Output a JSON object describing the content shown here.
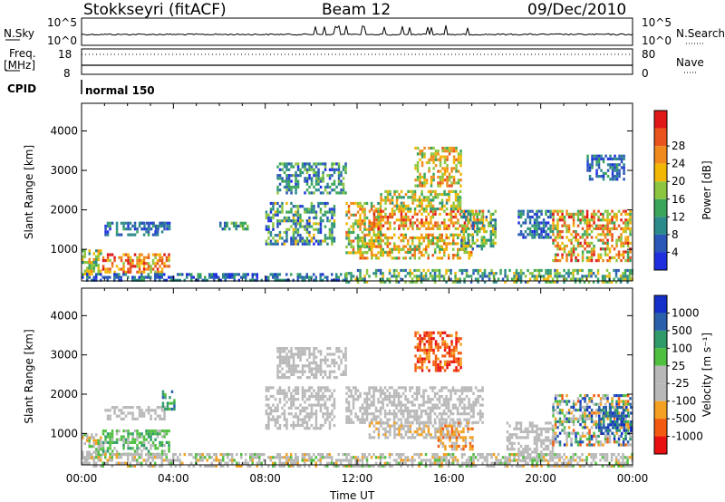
{
  "header": {
    "station": "Stokkseyri (fitACF)",
    "beam": "Beam 12",
    "date": "09/Dec/2010"
  },
  "top_panel": {
    "nsky_label": "N.Sky",
    "nsky_ticks": [
      "10^5",
      "10^0"
    ],
    "nsearch_label": "N.Search",
    "nsearch_ticks": [
      "10^5",
      "10^0"
    ],
    "freq_label": "Freq.",
    "freq_unit": "[MHz]",
    "freq_ticks": [
      "18",
      "8"
    ],
    "nave_label": "Nave",
    "nave_ticks": [
      "80",
      "0"
    ],
    "cpid_label": "CPID",
    "cpid_value": "normal 150"
  },
  "colors": {
    "power": [
      "#1f2fe0",
      "#2a57b8",
      "#2c8a8a",
      "#3aa65a",
      "#8cc63f",
      "#f2b705",
      "#f08a1c",
      "#e8541c",
      "#e01818"
    ],
    "velocity": [
      "#e81010",
      "#f25a10",
      "#f4a020",
      "#b8b8b8",
      "#b8b8b8",
      "#4fbf3f",
      "#2f9a6a",
      "#2a5faa",
      "#1530c8"
    ]
  },
  "chart_data": [
    {
      "type": "heatmap",
      "name": "power",
      "ylabel": "Slant Range [km]",
      "xlabel": "",
      "ylim": [
        200,
        4700
      ],
      "xlim": [
        0,
        24
      ],
      "yticks": [
        "1000",
        "2000",
        "3000",
        "4000"
      ],
      "ytick_values": [
        1000,
        2000,
        3000,
        4000
      ],
      "colorbar": {
        "label": "Power [dB]",
        "ticks": [
          "4",
          "8",
          "12",
          "16",
          "20",
          "24",
          "28"
        ],
        "range": [
          0,
          32
        ]
      },
      "regions": [
        {
          "t": [
            0.0,
            0.8
          ],
          "r": [
            400,
            1000
          ],
          "level": [
            2,
            6
          ]
        },
        {
          "t": [
            0.9,
            3.8
          ],
          "r": [
            400,
            900
          ],
          "level": [
            4,
            8
          ]
        },
        {
          "t": [
            1.0,
            3.6
          ],
          "r": [
            1400,
            1700
          ],
          "level": [
            0,
            3
          ]
        },
        {
          "t": [
            2.5,
            3.8
          ],
          "r": [
            1500,
            1700
          ],
          "level": [
            0,
            2
          ]
        },
        {
          "t": [
            6.0,
            7.2
          ],
          "r": [
            1500,
            1700
          ],
          "level": [
            1,
            4
          ]
        },
        {
          "t": [
            8.0,
            11.0
          ],
          "r": [
            1100,
            2200
          ],
          "level": [
            0,
            5
          ]
        },
        {
          "t": [
            8.5,
            11.5
          ],
          "r": [
            2400,
            3200
          ],
          "level": [
            0,
            4
          ]
        },
        {
          "t": [
            11.5,
            13.0
          ],
          "r": [
            900,
            2200
          ],
          "level": [
            2,
            7
          ]
        },
        {
          "t": [
            12.5,
            17.5
          ],
          "r": [
            1500,
            2000
          ],
          "level": [
            4,
            8
          ]
        },
        {
          "t": [
            13.0,
            16.5
          ],
          "r": [
            2000,
            2500
          ],
          "level": [
            2,
            6
          ]
        },
        {
          "t": [
            14.5,
            16.5
          ],
          "r": [
            2600,
            3600
          ],
          "level": [
            3,
            7
          ]
        },
        {
          "t": [
            12.0,
            17.0
          ],
          "r": [
            800,
            1400
          ],
          "level": [
            3,
            7
          ]
        },
        {
          "t": [
            16.5,
            18.0
          ],
          "r": [
            1000,
            2000
          ],
          "level": [
            1,
            5
          ]
        },
        {
          "t": [
            19.0,
            20.5
          ],
          "r": [
            1300,
            2000
          ],
          "level": [
            0,
            3
          ]
        },
        {
          "t": [
            20.5,
            23.9
          ],
          "r": [
            700,
            2000
          ],
          "level": [
            3,
            8
          ]
        },
        {
          "t": [
            22.0,
            23.6
          ],
          "r": [
            2800,
            3400
          ],
          "level": [
            0,
            3
          ]
        },
        {
          "t": [
            0.0,
            11.5
          ],
          "r": [
            200,
            400
          ],
          "level": [
            0,
            3
          ]
        },
        {
          "t": [
            11.5,
            24.0
          ],
          "r": [
            200,
            500
          ],
          "level": [
            1,
            5
          ]
        }
      ]
    },
    {
      "type": "heatmap",
      "name": "velocity",
      "ylabel": "Slant Range [km]",
      "xlabel": "Time UT",
      "ylim": [
        200,
        4700
      ],
      "xlim": [
        0,
        24
      ],
      "yticks": [
        "1000",
        "2000",
        "3000",
        "4000"
      ],
      "ytick_values": [
        1000,
        2000,
        3000,
        4000
      ],
      "xticks": [
        "00:00",
        "04:00",
        "08:00",
        "12:00",
        "16:00",
        "20:00",
        "00:00"
      ],
      "xtick_values": [
        0,
        4,
        8,
        12,
        16,
        20,
        24
      ],
      "colorbar": {
        "label": "Velocity  [m s⁻¹]",
        "ticks": [
          "1000",
          "500",
          "100",
          "25",
          "-25",
          "-100",
          "-500",
          "-1000"
        ],
        "range": [
          -1000,
          1000
        ]
      },
      "regions": [
        {
          "t": [
            0.0,
            0.8
          ],
          "r": [
            400,
            1000
          ],
          "level": [
            2,
            5
          ]
        },
        {
          "t": [
            0.9,
            3.8
          ],
          "r": [
            500,
            1100
          ],
          "level": [
            4,
            6
          ]
        },
        {
          "t": [
            1.0,
            3.6
          ],
          "r": [
            1400,
            1700
          ],
          "level": [
            3,
            4
          ]
        },
        {
          "t": [
            3.5,
            4.0
          ],
          "r": [
            1600,
            2100
          ],
          "level": [
            5,
            7
          ]
        },
        {
          "t": [
            8.0,
            11.0
          ],
          "r": [
            1100,
            2200
          ],
          "level": [
            3,
            4
          ]
        },
        {
          "t": [
            8.5,
            11.5
          ],
          "r": [
            2400,
            3200
          ],
          "level": [
            3,
            4
          ]
        },
        {
          "t": [
            11.5,
            17.5
          ],
          "r": [
            1300,
            2200
          ],
          "level": [
            3,
            4
          ]
        },
        {
          "t": [
            12.5,
            16.5
          ],
          "r": [
            900,
            1300
          ],
          "level": [
            2,
            4
          ]
        },
        {
          "t": [
            14.5,
            16.5
          ],
          "r": [
            2600,
            3600
          ],
          "level": [
            0,
            2
          ]
        },
        {
          "t": [
            15.5,
            17.0
          ],
          "r": [
            600,
            1300
          ],
          "level": [
            1,
            3
          ]
        },
        {
          "t": [
            18.5,
            20.5
          ],
          "r": [
            300,
            1300
          ],
          "level": [
            3,
            4
          ]
        },
        {
          "t": [
            20.5,
            23.9
          ],
          "r": [
            700,
            2000
          ],
          "level": [
            1,
            8
          ]
        },
        {
          "t": [
            22.5,
            23.9
          ],
          "r": [
            1000,
            1700
          ],
          "level": [
            6,
            8
          ]
        },
        {
          "t": [
            0.0,
            11.5
          ],
          "r": [
            200,
            500
          ],
          "level": [
            2,
            5
          ]
        },
        {
          "t": [
            11.5,
            24.0
          ],
          "r": [
            200,
            500
          ],
          "level": [
            2,
            5
          ]
        }
      ]
    }
  ]
}
